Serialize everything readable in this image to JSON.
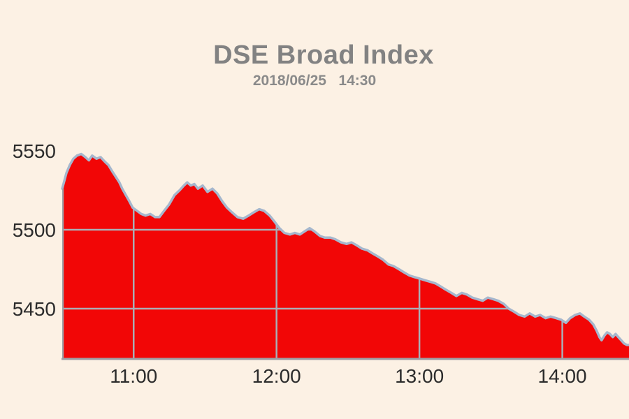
{
  "page": {
    "background_color": "#fcf1e4"
  },
  "chart_data": {
    "type": "area",
    "title": "DSE Broad Index",
    "subtitle": "2018/06/25   14:30",
    "xlabel": "",
    "ylabel": "",
    "legend": false,
    "grid": true,
    "x_axis": {
      "start_time": "10:30",
      "end_time": "14:28",
      "total_minutes": 238
    },
    "x_tick_labels": [
      "11:00",
      "12:00",
      "13:00",
      "14:00"
    ],
    "x_tick_minutes": [
      30,
      90,
      150,
      210
    ],
    "y_tick_labels": [
      "5550",
      "5500",
      "5450"
    ],
    "y_tick_values": [
      5550,
      5500,
      5450
    ],
    "ylim": [
      5419,
      5552
    ],
    "series": [
      {
        "name": "DSE Broad Index",
        "x_unit": "minutes_after_10:30",
        "points": [
          [
            0,
            5526
          ],
          [
            1.8,
            5536
          ],
          [
            3.2,
            5541
          ],
          [
            4.7,
            5545
          ],
          [
            6.2,
            5547
          ],
          [
            8,
            5548
          ],
          [
            9.7,
            5546
          ],
          [
            11.2,
            5544
          ],
          [
            12.6,
            5547
          ],
          [
            14.4,
            5545
          ],
          [
            16.1,
            5546
          ],
          [
            18,
            5543
          ],
          [
            19.4,
            5541
          ],
          [
            21,
            5537
          ],
          [
            22.3,
            5534
          ],
          [
            24,
            5530
          ],
          [
            25.2,
            5526
          ],
          [
            26.7,
            5522
          ],
          [
            28.2,
            5518
          ],
          [
            29.6,
            5514
          ],
          [
            31.4,
            5512
          ],
          [
            33.2,
            5510
          ],
          [
            35,
            5509
          ],
          [
            37,
            5510
          ],
          [
            39,
            5508
          ],
          [
            40.8,
            5508
          ],
          [
            42.8,
            5512
          ],
          [
            44.9,
            5516
          ],
          [
            47.2,
            5522
          ],
          [
            49.3,
            5525
          ],
          [
            51.1,
            5528
          ],
          [
            52.5,
            5530
          ],
          [
            54,
            5528
          ],
          [
            55.5,
            5529
          ],
          [
            57,
            5526
          ],
          [
            59,
            5528
          ],
          [
            61,
            5524
          ],
          [
            63.1,
            5526
          ],
          [
            65.1,
            5523
          ],
          [
            67.2,
            5518
          ],
          [
            69.2,
            5514
          ],
          [
            71.3,
            5511
          ],
          [
            73.6,
            5508
          ],
          [
            76,
            5507
          ],
          [
            78.3,
            5509
          ],
          [
            80.4,
            5511
          ],
          [
            82.7,
            5513
          ],
          [
            84.8,
            5512
          ],
          [
            87.1,
            5509
          ],
          [
            89.2,
            5505
          ],
          [
            91.2,
            5501
          ],
          [
            93.3,
            5498
          ],
          [
            95.6,
            5497
          ],
          [
            97.7,
            5498
          ],
          [
            99.8,
            5497
          ],
          [
            101.8,
            5499
          ],
          [
            103.9,
            5501
          ],
          [
            105.9,
            5499
          ],
          [
            108.3,
            5496
          ],
          [
            110.3,
            5495
          ],
          [
            112.7,
            5495
          ],
          [
            114.7,
            5494
          ],
          [
            117.1,
            5492
          ],
          [
            119.4,
            5491
          ],
          [
            121.5,
            5492
          ],
          [
            123.8,
            5490
          ],
          [
            125.9,
            5488
          ],
          [
            128.2,
            5487
          ],
          [
            130.3,
            5485
          ],
          [
            132.6,
            5483
          ],
          [
            134.7,
            5481
          ],
          [
            137,
            5478
          ],
          [
            139.1,
            5477
          ],
          [
            141.4,
            5475
          ],
          [
            143.5,
            5473
          ],
          [
            145.8,
            5471
          ],
          [
            147.9,
            5470
          ],
          [
            150.2,
            5469
          ],
          [
            152.3,
            5468
          ],
          [
            154.6,
            5467
          ],
          [
            156.7,
            5466
          ],
          [
            159,
            5464
          ],
          [
            161.1,
            5462
          ],
          [
            163.4,
            5460
          ],
          [
            165.5,
            5458
          ],
          [
            167.8,
            5460
          ],
          [
            169.9,
            5459
          ],
          [
            172.2,
            5457
          ],
          [
            174.3,
            5456
          ],
          [
            176.6,
            5455
          ],
          [
            178.7,
            5457
          ],
          [
            181,
            5456
          ],
          [
            183.1,
            5455
          ],
          [
            185.4,
            5453
          ],
          [
            187.5,
            5450
          ],
          [
            189.8,
            5448
          ],
          [
            191.9,
            5446
          ],
          [
            194.2,
            5445
          ],
          [
            196.3,
            5447
          ],
          [
            198.6,
            5445
          ],
          [
            200.7,
            5446
          ],
          [
            203,
            5444
          ],
          [
            205.1,
            5445
          ],
          [
            207.4,
            5444
          ],
          [
            209.5,
            5443
          ],
          [
            211.5,
            5441
          ],
          [
            213.3,
            5444
          ],
          [
            215.4,
            5446
          ],
          [
            217.4,
            5447
          ],
          [
            219.2,
            5445
          ],
          [
            221.2,
            5443
          ],
          [
            223,
            5440
          ],
          [
            224.4,
            5436
          ],
          [
            225.6,
            5432
          ],
          [
            226.5,
            5430
          ],
          [
            227.7,
            5433
          ],
          [
            228.8,
            5435
          ],
          [
            230,
            5434
          ],
          [
            231.2,
            5432
          ],
          [
            232.4,
            5434
          ],
          [
            233.5,
            5432
          ],
          [
            234.7,
            5430
          ],
          [
            235.9,
            5428
          ],
          [
            237.1,
            5427
          ],
          [
            238,
            5427
          ]
        ]
      }
    ],
    "colors": {
      "fill": "#f20606",
      "line": "#a6b7cd",
      "grid": "#aaaeb6",
      "axis": "#9e9ea4",
      "tick_text": "#2b2b2b",
      "title_text": "#828282"
    }
  }
}
